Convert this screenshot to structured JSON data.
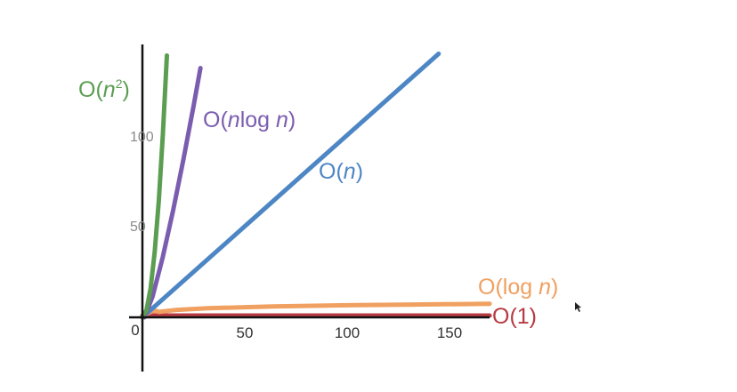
{
  "chart_data": {
    "type": "line",
    "title": "",
    "xlabel": "",
    "ylabel": "",
    "xlim": [
      0,
      170
    ],
    "ylim": [
      0,
      145
    ],
    "x_ticks": [
      "0",
      "50",
      "100",
      "150"
    ],
    "y_ticks": [
      "50",
      "100"
    ],
    "grid": false,
    "legend": "none",
    "series": [
      {
        "name": "O(n²)",
        "name_base": "O(",
        "name_var": "n",
        "name_sup": "2",
        "name_tail": ")",
        "formula": "n^2",
        "color": "#5b9e52",
        "x": [
          0,
          2,
          4,
          6,
          8,
          10,
          12
        ],
        "y": [
          0,
          4,
          16,
          36,
          64,
          100,
          144
        ]
      },
      {
        "name": "O(nlog n)",
        "name_base": "O(",
        "name_var": "n",
        "name_mid": "log ",
        "name_var2": "n",
        "name_tail": ")",
        "formula": "n·log2(n)",
        "color": "#7b5db0",
        "x": [
          1,
          5,
          10,
          15,
          20,
          25,
          28.4
        ],
        "y": [
          0,
          11.6,
          33.2,
          58.6,
          86.4,
          116.1,
          137.1
        ]
      },
      {
        "name": "O(n)",
        "name_base": "O(",
        "name_var": "n",
        "name_tail": ")",
        "formula": "n",
        "color": "#4d86c4",
        "x": [
          0,
          50,
          100,
          145
        ],
        "y": [
          0,
          50,
          100,
          145
        ]
      },
      {
        "name": "O(log n)",
        "name_base": "O(log ",
        "name_var": "n",
        "name_tail": ")",
        "formula": "log2(n)",
        "color": "#f0a060",
        "x": [
          1,
          2,
          4,
          8,
          16,
          32,
          64,
          100,
          128,
          170
        ],
        "y": [
          0,
          1,
          2,
          3,
          4,
          5,
          6,
          6.64,
          7,
          7.41
        ]
      },
      {
        "name": "O(1)",
        "name_base": "O(1)",
        "name_var": "",
        "name_tail": "",
        "formula": "1",
        "color": "#b83a42",
        "x": [
          0,
          170
        ],
        "y": [
          1,
          1
        ]
      }
    ]
  }
}
